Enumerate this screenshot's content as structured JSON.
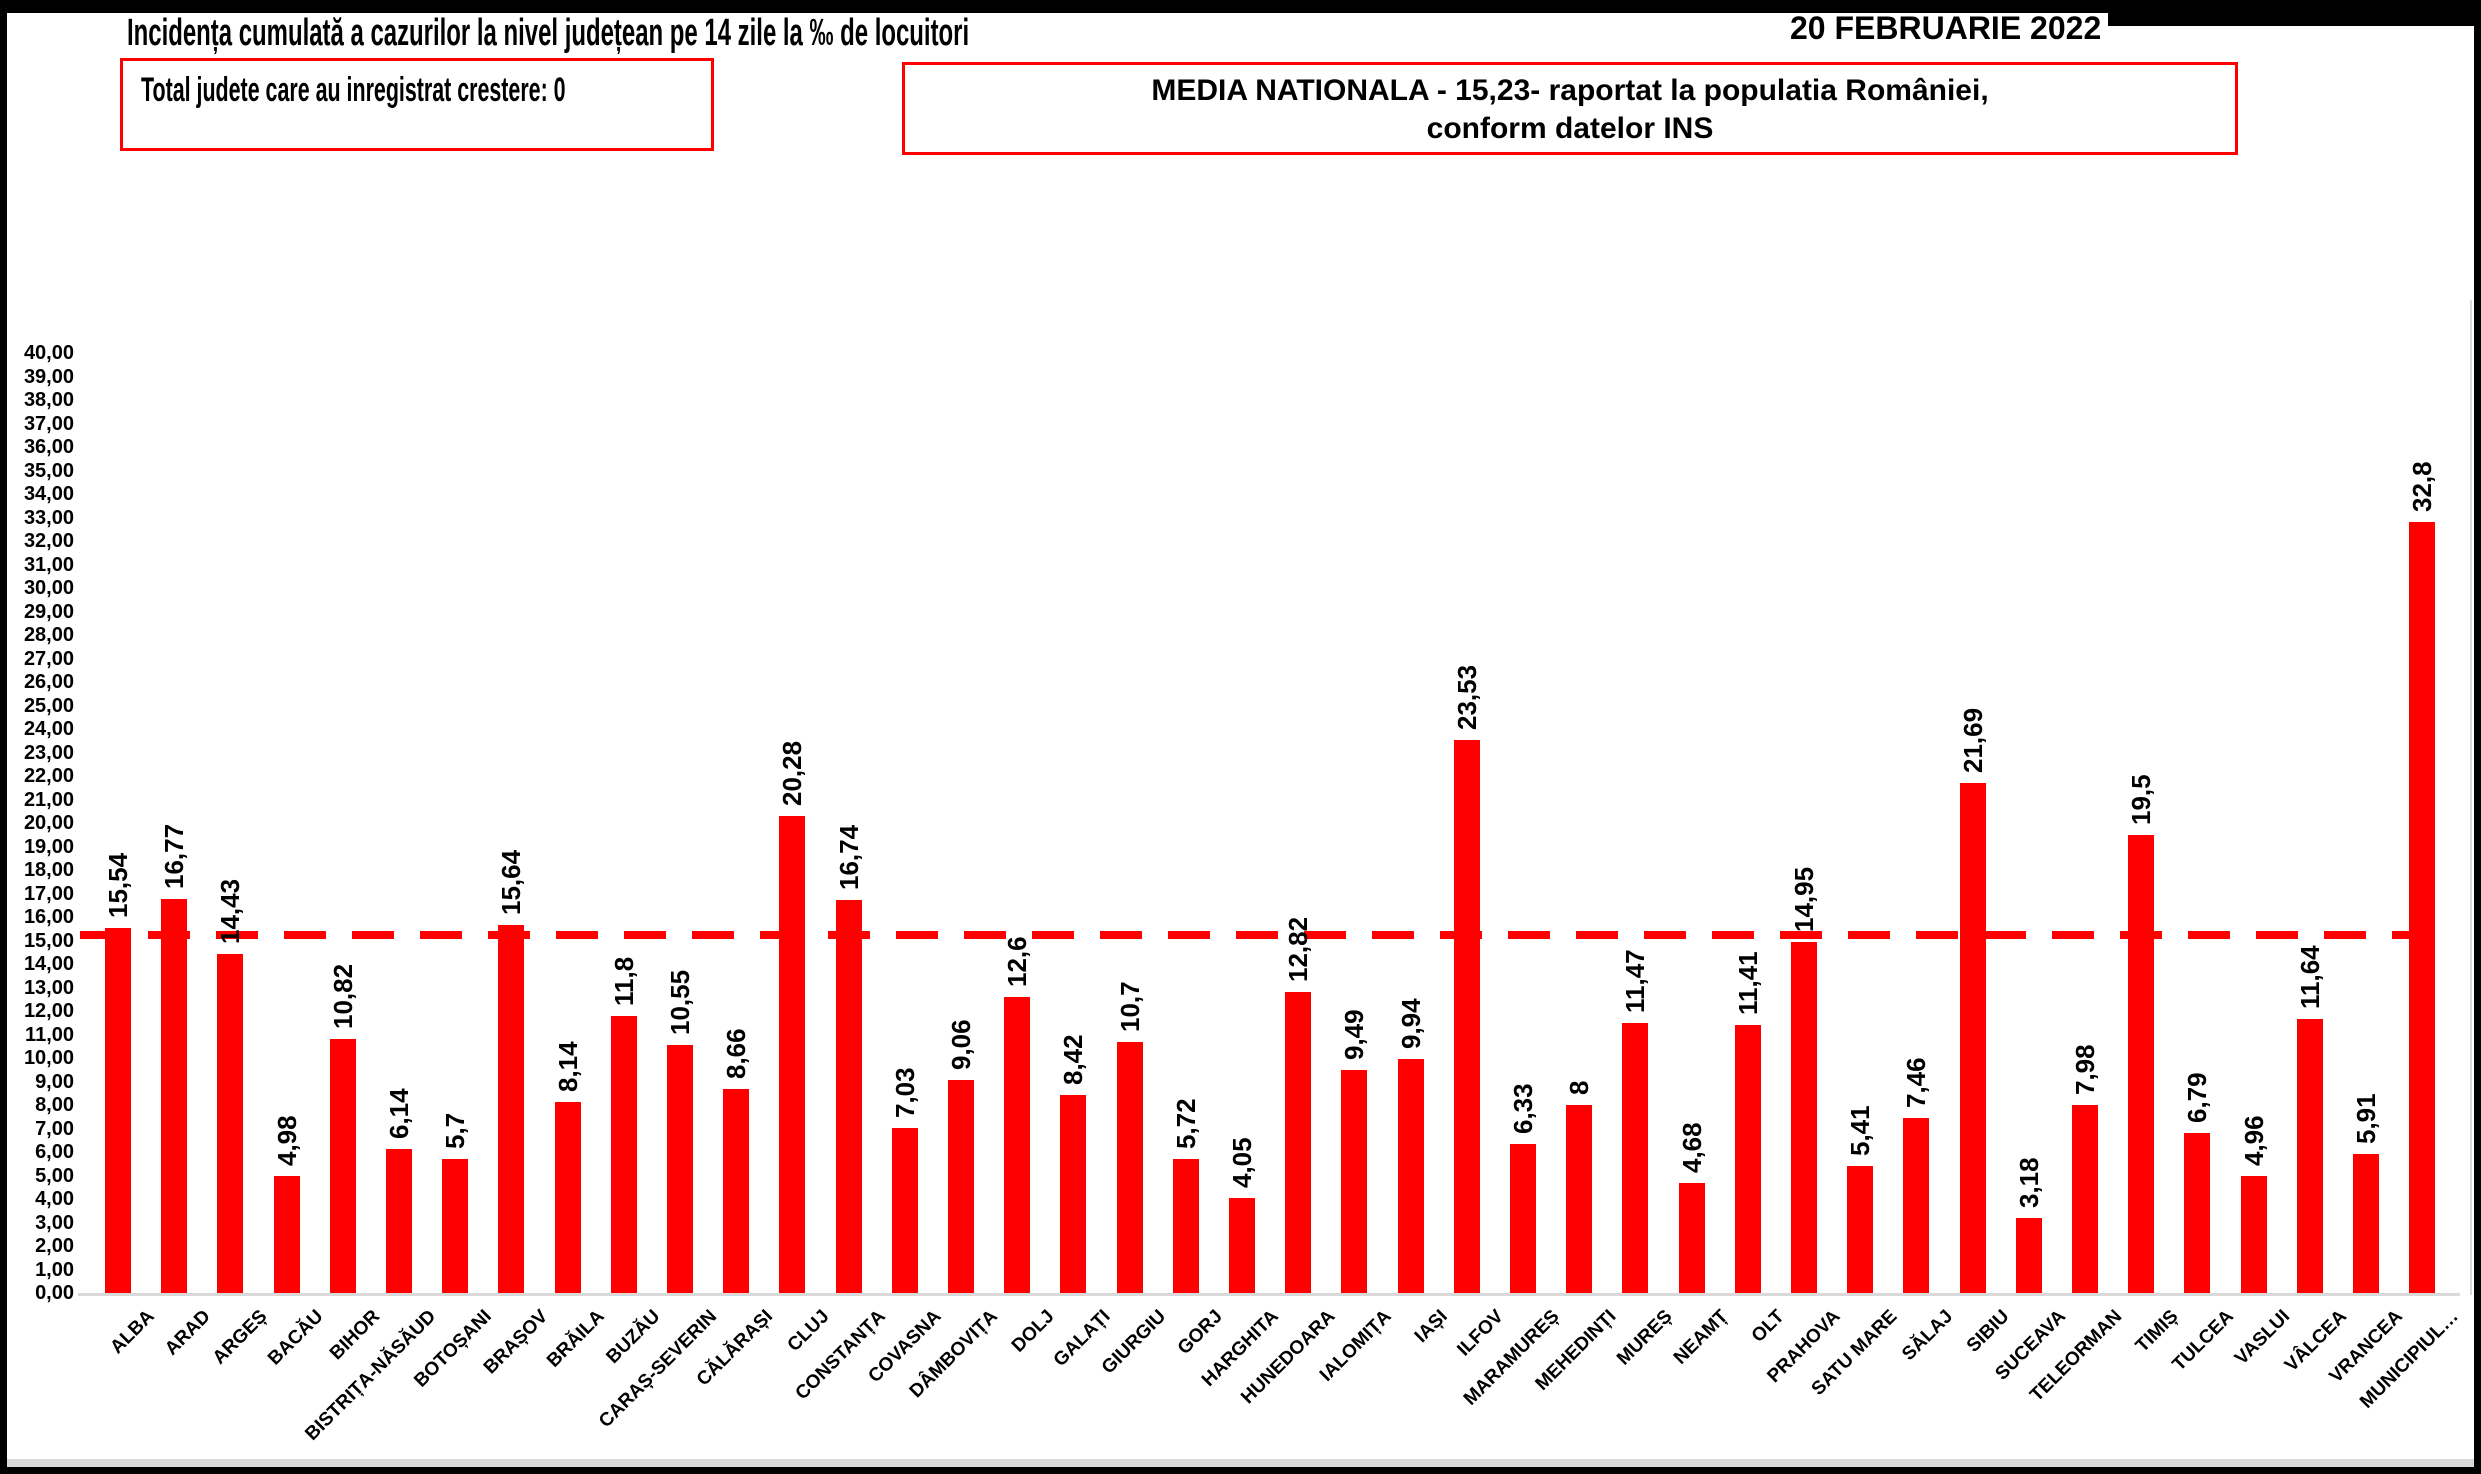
{
  "header": {
    "title": "Incidența cumulată a cazurilor la nivel județean pe 14 zile la ‰ de locuitori",
    "date": "20 FEBRUARIE 2022",
    "growth_box_text": "Total judete care au inregistrat crestere: 0",
    "national_box_line1": "MEDIA NATIONALA - 15,23-  raportat la populatia României,",
    "national_box_line2": "conform datelor INS"
  },
  "chart_data": {
    "type": "bar",
    "title": "Incidența cumulată a cazurilor la nivel județean pe 14 zile la ‰ de locuitori",
    "date_annotation": "20 FEBRUARIE 2022",
    "categories": [
      "ALBA",
      "ARAD",
      "ARGEȘ",
      "BACĂU",
      "BIHOR",
      "BISTRIȚA-NĂSĂUD",
      "BOTOȘANI",
      "BRAȘOV",
      "BRĂILA",
      "BUZĂU",
      "CARAȘ-SEVERIN",
      "CĂLĂRAȘI",
      "CLUJ",
      "CONSTANȚA",
      "COVASNA",
      "DÂMBOVIȚA",
      "DOLJ",
      "GALAȚI",
      "GIURGIU",
      "GORJ",
      "HARGHITA",
      "HUNEDOARA",
      "IALOMIȚA",
      "IAȘI",
      "ILFOV",
      "MARAMUREȘ",
      "MEHEDINȚI",
      "MUREȘ",
      "NEAMȚ",
      "OLT",
      "PRAHOVA",
      "SATU MARE",
      "SĂLAJ",
      "SIBIU",
      "SUCEAVA",
      "TELEORMAN",
      "TIMIȘ",
      "TULCEA",
      "VASLUI",
      "VÂLCEA",
      "VRANCEA",
      "MUNICIPIUL…"
    ],
    "values": [
      15.54,
      16.77,
      14.43,
      4.98,
      10.82,
      6.14,
      5.7,
      15.64,
      8.14,
      11.8,
      10.55,
      8.66,
      20.28,
      16.74,
      7.03,
      9.06,
      12.6,
      8.42,
      10.7,
      5.72,
      4.05,
      12.82,
      9.49,
      9.94,
      23.53,
      6.33,
      8,
      11.47,
      4.68,
      11.41,
      14.95,
      5.41,
      7.46,
      21.69,
      3.18,
      7.98,
      19.5,
      6.79,
      4.96,
      11.64,
      5.91,
      32.8
    ],
    "value_labels": [
      "15,54",
      "16,77",
      "14,43",
      "4,98",
      "10,82",
      "6,14",
      "5,7",
      "15,64",
      "8,14",
      "11,8",
      "10,55",
      "8,66",
      "20,28",
      "16,74",
      "7,03",
      "9,06",
      "12,6",
      "8,42",
      "10,7",
      "5,72",
      "4,05",
      "12,82",
      "9,49",
      "9,94",
      "23,53",
      "6,33",
      "8",
      "11,47",
      "4,68",
      "11,41",
      "14,95",
      "5,41",
      "7,46",
      "21,69",
      "3,18",
      "7,98",
      "19,5",
      "6,79",
      "4,96",
      "11,64",
      "5,91",
      "32,8"
    ],
    "national_average": 15.23,
    "national_average_label": "15,23",
    "ylim": [
      0,
      40
    ],
    "ytick_step": 1,
    "ytick_decimal_suffix": ",00",
    "bar_color": "#FF0000",
    "average_line_color": "#FF0000",
    "average_line_style": "dashed",
    "grid": false,
    "legend": false
  }
}
